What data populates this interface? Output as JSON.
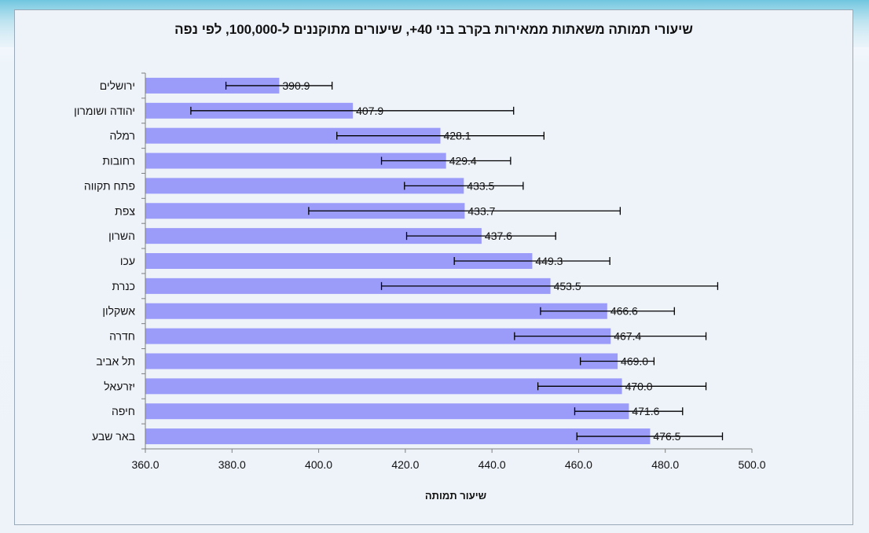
{
  "chart_data": {
    "type": "bar",
    "orientation": "horizontal",
    "title": "שיעורי תמותה משאתות ממאירות בקרב בני 40+, שיעורים מתוקננים ל-100,000, לפי נפה",
    "xlabel": "שיעור תמותה",
    "ylabel": "",
    "xlim": [
      360,
      500
    ],
    "xticks": [
      "360.0",
      "380.0",
      "400.0",
      "420.0",
      "440.0",
      "460.0",
      "480.0",
      "500.0"
    ],
    "grid": false,
    "bar_color": "#9b9bf9",
    "categories": [
      "ירושלים",
      "יהודה ושומרון",
      "רמלה",
      "רחובות",
      "פתח תקווה",
      "צפת",
      "השרון",
      "עכו",
      "כנרת",
      "אשקלון",
      "חדרה",
      "תל אביב",
      "יזרעאל",
      "חיפה",
      "באר שבע"
    ],
    "values": [
      390.9,
      407.9,
      428.1,
      429.4,
      433.5,
      433.7,
      437.6,
      449.3,
      453.5,
      466.6,
      467.4,
      469.0,
      470.0,
      471.6,
      476.5
    ],
    "value_labels": [
      "390.9",
      "407.9",
      "428.1",
      "429.4",
      "433.5",
      "433.7",
      "437.6",
      "449.3",
      "453.5",
      "466.6",
      "467.4",
      "469.0",
      "470.0",
      "471.6",
      "476.5"
    ],
    "ci_lower": [
      378.6,
      370.5,
      404.2,
      414.5,
      419.8,
      397.7,
      420.3,
      431.3,
      414.5,
      451.2,
      445.2,
      460.4,
      450.6,
      459.1,
      459.6
    ],
    "ci_upper": [
      403.1,
      445.0,
      452.0,
      444.3,
      447.2,
      469.6,
      454.7,
      467.2,
      492.1,
      482.1,
      489.4,
      477.4,
      489.4,
      484.0,
      493.2
    ]
  }
}
